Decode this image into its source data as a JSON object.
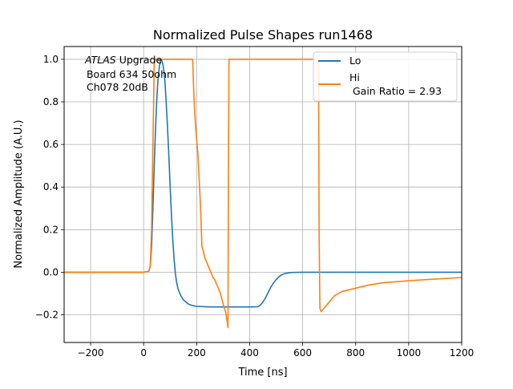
{
  "chart_data": {
    "type": "line",
    "title": "Normalized Pulse Shapes run1468",
    "xlabel": "Time [ns]",
    "ylabel": "Normalized Amplitude (A.U.)",
    "xlim": [
      -300,
      1200
    ],
    "ylim": [
      -0.33,
      1.06
    ],
    "xticks": [
      -200,
      0,
      200,
      400,
      600,
      800,
      1000,
      1200
    ],
    "xtick_labels": [
      "−200",
      "0",
      "200",
      "400",
      "600",
      "800",
      "1000",
      "1200"
    ],
    "yticks": [
      -0.2,
      0.0,
      0.2,
      0.4,
      0.6,
      0.8,
      1.0
    ],
    "ytick_labels": [
      "−0.2",
      "0.0",
      "0.2",
      "0.4",
      "0.6",
      "0.8",
      "1.0"
    ],
    "grid": true,
    "legend_position": "top-right",
    "annotation": {
      "italic": "ATLAS",
      "line1_rest": " Upgrade",
      "line2": " Board 634 50ohm",
      "line3": " Ch078 20dB"
    },
    "series": [
      {
        "name": "Lo",
        "color": "#1f77b4",
        "x": [
          -300,
          0,
          20,
          25,
          30,
          35,
          40,
          45,
          50,
          55,
          60,
          65,
          70,
          75,
          80,
          85,
          90,
          95,
          100,
          105,
          110,
          115,
          120,
          125,
          130,
          140,
          150,
          160,
          170,
          180,
          190,
          200,
          250,
          300,
          350,
          400,
          430,
          440,
          450,
          460,
          470,
          480,
          490,
          500,
          510,
          520,
          530,
          540,
          560,
          600,
          700,
          800,
          1000,
          1200
        ],
        "y": [
          0.0,
          0.0,
          0.005,
          0.03,
          0.12,
          0.3,
          0.5,
          0.68,
          0.82,
          0.92,
          0.97,
          1.0,
          0.99,
          0.96,
          0.9,
          0.8,
          0.68,
          0.55,
          0.4,
          0.27,
          0.15,
          0.06,
          -0.01,
          -0.05,
          -0.08,
          -0.11,
          -0.13,
          -0.14,
          -0.15,
          -0.155,
          -0.158,
          -0.16,
          -0.163,
          -0.163,
          -0.163,
          -0.163,
          -0.162,
          -0.155,
          -0.14,
          -0.12,
          -0.095,
          -0.07,
          -0.05,
          -0.035,
          -0.022,
          -0.013,
          -0.007,
          -0.004,
          -0.001,
          0.0,
          0.0,
          0.0,
          0.0,
          0.0
        ]
      },
      {
        "name": "Hi\n Gain Ratio = 2.93",
        "color": "#ff7f0e",
        "x": [
          -300,
          0,
          20,
          25,
          30,
          35,
          40,
          45,
          185,
          188,
          190,
          195,
          205,
          215,
          220,
          225,
          230,
          240,
          250,
          260,
          270,
          280,
          290,
          300,
          310,
          315,
          318,
          320,
          322,
          660,
          662,
          665,
          670,
          680,
          700,
          720,
          750,
          800,
          850,
          900,
          1000,
          1100,
          1200
        ],
        "y": [
          0.0,
          0.0,
          0.005,
          0.03,
          0.2,
          0.6,
          0.98,
          1.0,
          1.0,
          0.88,
          0.82,
          0.7,
          0.55,
          0.3,
          0.12,
          0.1,
          0.07,
          0.04,
          0.01,
          -0.02,
          -0.04,
          -0.07,
          -0.1,
          -0.15,
          -0.19,
          -0.23,
          -0.26,
          0.5,
          1.0,
          1.0,
          0.2,
          -0.17,
          -0.185,
          -0.17,
          -0.14,
          -0.11,
          -0.09,
          -0.075,
          -0.06,
          -0.05,
          -0.04,
          -0.032,
          -0.025
        ]
      }
    ]
  }
}
